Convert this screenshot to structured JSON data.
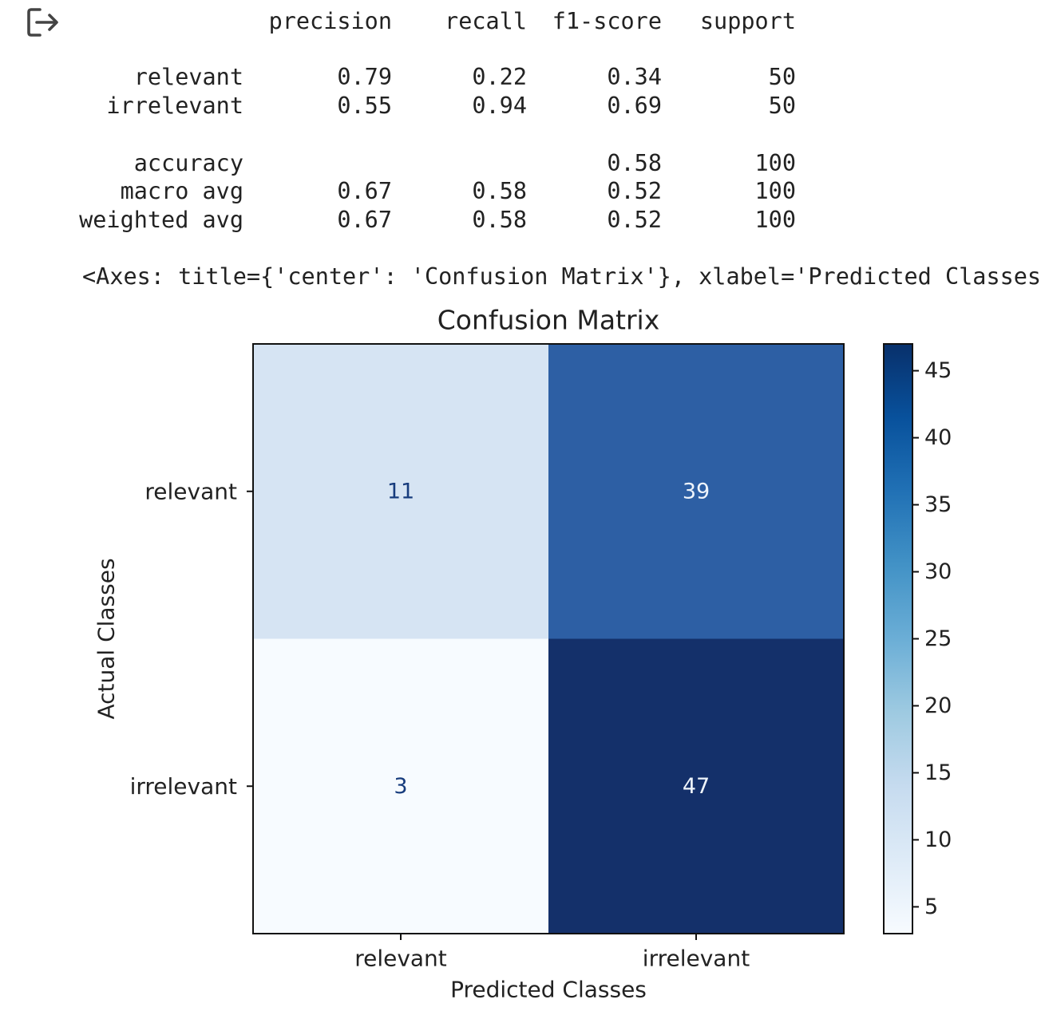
{
  "output_icon": "output-redirect-icon",
  "report": {
    "headers": [
      "precision",
      "recall",
      "f1-score",
      "support"
    ],
    "rows": [
      {
        "label": "relevant",
        "precision": "0.79",
        "recall": "0.22",
        "f1": "0.34",
        "support": "50"
      },
      {
        "label": "irrelevant",
        "precision": "0.55",
        "recall": "0.94",
        "f1": "0.69",
        "support": "50"
      },
      {
        "label": "accuracy",
        "precision": "",
        "recall": "",
        "f1": "0.58",
        "support": "100"
      },
      {
        "label": "macro avg",
        "precision": "0.67",
        "recall": "0.58",
        "f1": "0.52",
        "support": "100"
      },
      {
        "label": "weighted avg",
        "precision": "0.67",
        "recall": "0.58",
        "f1": "0.52",
        "support": "100"
      }
    ]
  },
  "axes_repr": "<Axes: title={'center': 'Confusion Matrix'}, xlabel='Predicted Classes'",
  "chart_data": {
    "type": "heatmap",
    "title": "Confusion Matrix",
    "xlabel": "Predicted Classes",
    "ylabel": "Actual Classes",
    "x_categories": [
      "relevant",
      "irrelevant"
    ],
    "y_categories": [
      "relevant",
      "irrelevant"
    ],
    "matrix": [
      [
        11,
        39
      ],
      [
        3,
        47
      ]
    ],
    "colormap": "Blues",
    "colorbar": {
      "min": 3,
      "max": 47,
      "ticks": [
        5,
        10,
        15,
        20,
        25,
        30,
        35,
        40,
        45
      ]
    },
    "colors": {
      "cell_11": "#d6e4f3",
      "cell_39": "#2d5fa4",
      "cell_3": "#f7fbff",
      "cell_47": "#14306a",
      "text_light": "#eef4fb",
      "text_dark": "#173c7d"
    }
  }
}
